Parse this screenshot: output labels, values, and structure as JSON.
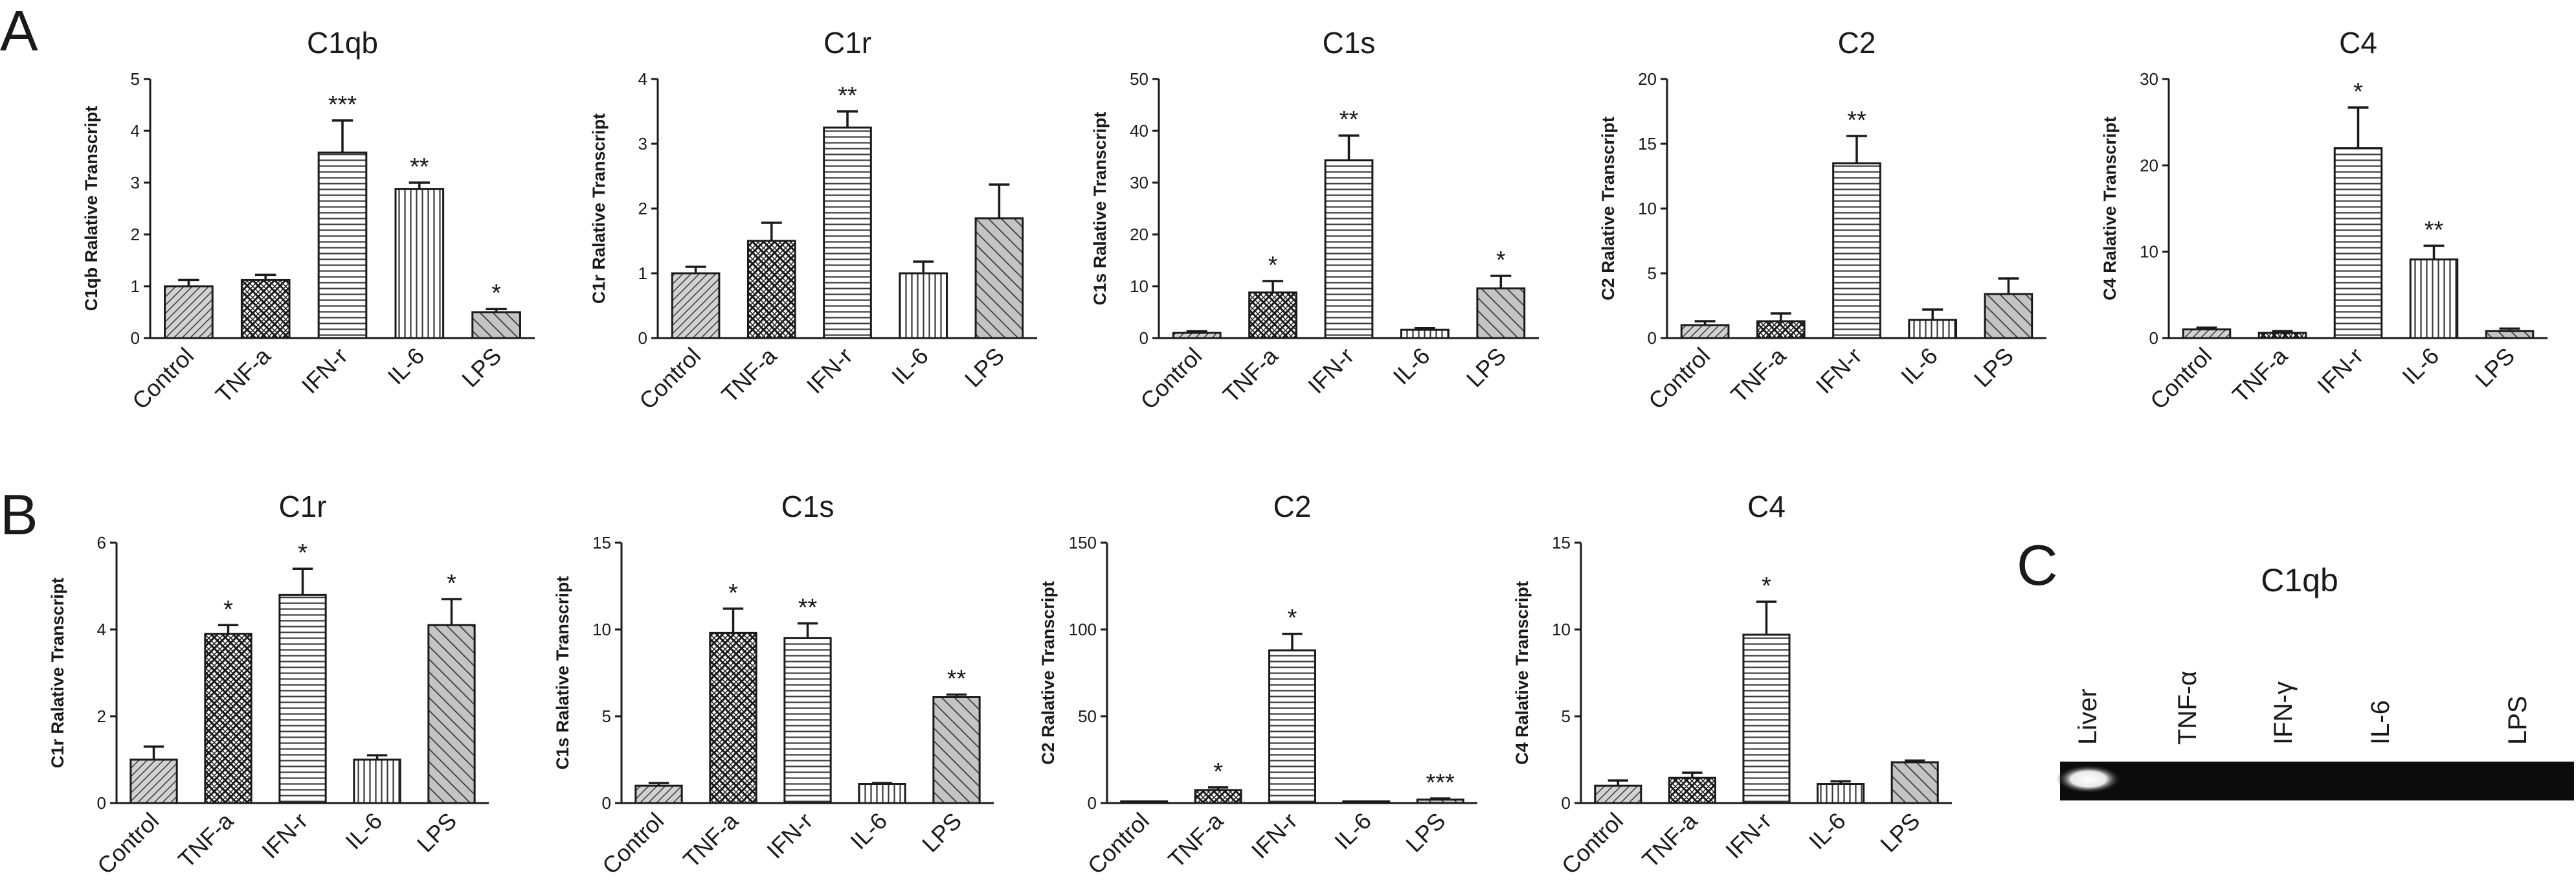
{
  "panel_letters": {
    "a": "A",
    "b": "B",
    "c": "C"
  },
  "colors": {
    "bar_fill": "#bdbdbd",
    "stroke": "#1a1a1a",
    "gel_background": "#0c0c0c",
    "gel_band": "#f4f4f4"
  },
  "patterns": [
    "diagonal-dense",
    "crosshatch",
    "horizontal",
    "vertical",
    "diagonal-wide"
  ],
  "chart_data": [
    {
      "panel": "A",
      "type": "bar",
      "title": "C1qb",
      "ylabel": "C1qb Ralative Transcript",
      "categories": [
        "Control",
        "TNF-a",
        "IFN-r",
        "IL-6",
        "LPS"
      ],
      "values": [
        1.0,
        1.12,
        3.58,
        2.88,
        0.5
      ],
      "errors": [
        0.12,
        0.1,
        0.62,
        0.12,
        0.06
      ],
      "significance": [
        "",
        "",
        "***",
        "**",
        "*"
      ],
      "ylim": [
        0,
        5
      ],
      "yticks": [
        0,
        1,
        2,
        3,
        4,
        5
      ]
    },
    {
      "panel": "A",
      "type": "bar",
      "title": "C1r",
      "ylabel": "C1r Ralative Transcript",
      "categories": [
        "Control",
        "TNF-a",
        "IFN-r",
        "IL-6",
        "LPS"
      ],
      "values": [
        1.0,
        1.5,
        3.25,
        1.0,
        1.85
      ],
      "errors": [
        0.1,
        0.28,
        0.25,
        0.18,
        0.52
      ],
      "significance": [
        "",
        "",
        "**",
        "",
        ""
      ],
      "ylim": [
        0,
        4
      ],
      "yticks": [
        0,
        1,
        2,
        3,
        4
      ]
    },
    {
      "panel": "A",
      "type": "bar",
      "title": "C1s",
      "ylabel": "C1s Ralative Transcript",
      "categories": [
        "Control",
        "TNF-a",
        "IFN-r",
        "IL-6",
        "LPS"
      ],
      "values": [
        1.0,
        8.8,
        34.3,
        1.6,
        9.6
      ],
      "errors": [
        0.3,
        2.2,
        4.8,
        0.3,
        2.4
      ],
      "significance": [
        "",
        "*",
        "**",
        "",
        "*"
      ],
      "ylim": [
        0,
        50
      ],
      "yticks": [
        0,
        10,
        20,
        30,
        40,
        50
      ]
    },
    {
      "panel": "A",
      "type": "bar",
      "title": "C2",
      "ylabel": "C2 Ralative Transcript",
      "categories": [
        "Control",
        "TNF-a",
        "IFN-r",
        "IL-6",
        "LPS"
      ],
      "values": [
        1.0,
        1.3,
        13.5,
        1.4,
        3.4
      ],
      "errors": [
        0.3,
        0.6,
        2.1,
        0.8,
        1.2
      ],
      "significance": [
        "",
        "",
        "**",
        "",
        ""
      ],
      "ylim": [
        0,
        20
      ],
      "yticks": [
        0,
        5,
        10,
        15,
        20
      ]
    },
    {
      "panel": "A",
      "type": "bar",
      "title": "C4",
      "ylabel": "C4 Ralative Transcript",
      "categories": [
        "Control",
        "TNF-a",
        "IFN-r",
        "IL-6",
        "LPS"
      ],
      "values": [
        1.0,
        0.6,
        22.0,
        9.1,
        0.8
      ],
      "errors": [
        0.2,
        0.2,
        4.7,
        1.6,
        0.3
      ],
      "significance": [
        "",
        "",
        "*",
        "**",
        ""
      ],
      "ylim": [
        0,
        30
      ],
      "yticks": [
        0,
        10,
        20,
        30
      ]
    },
    {
      "panel": "B",
      "type": "bar",
      "title": "C1r",
      "ylabel": "C1r Ralative Transcript",
      "categories": [
        "Control",
        "TNF-a",
        "IFN-r",
        "IL-6",
        "LPS"
      ],
      "values": [
        1.0,
        3.9,
        4.8,
        1.0,
        4.1
      ],
      "errors": [
        0.3,
        0.2,
        0.6,
        0.1,
        0.6
      ],
      "significance": [
        "",
        "*",
        "*",
        "",
        "*"
      ],
      "ylim": [
        0,
        6
      ],
      "yticks": [
        0,
        2,
        4,
        6
      ]
    },
    {
      "panel": "B",
      "type": "bar",
      "title": "C1s",
      "ylabel": "C1s Ralative Transcript",
      "categories": [
        "Control",
        "TNF-a",
        "IFN-r",
        "IL-6",
        "LPS"
      ],
      "values": [
        1.0,
        9.8,
        9.5,
        1.1,
        6.1
      ],
      "errors": [
        0.15,
        1.4,
        0.85,
        0.05,
        0.15
      ],
      "significance": [
        "",
        "*",
        "**",
        "",
        "**"
      ],
      "ylim": [
        0,
        15
      ],
      "yticks": [
        0,
        5,
        10,
        15
      ]
    },
    {
      "panel": "B",
      "type": "bar",
      "title": "C2",
      "ylabel": "C2 Ralative Transcript",
      "categories": [
        "Control",
        "TNF-a",
        "IFN-r",
        "IL-6",
        "LPS"
      ],
      "values": [
        1.0,
        7.5,
        88.0,
        1.0,
        2.0
      ],
      "errors": [
        0.3,
        1.5,
        9.5,
        0.3,
        0.6
      ],
      "significance": [
        "",
        "*",
        "*",
        "",
        "***"
      ],
      "ylim": [
        0,
        150
      ],
      "yticks": [
        0,
        50,
        100,
        150
      ]
    },
    {
      "panel": "B",
      "type": "bar",
      "title": "C4",
      "ylabel": "C4 Ralative Transcript",
      "categories": [
        "Control",
        "TNF-a",
        "IFN-r",
        "IL-6",
        "LPS"
      ],
      "values": [
        1.0,
        1.45,
        9.7,
        1.1,
        2.35
      ],
      "errors": [
        0.3,
        0.3,
        1.9,
        0.15,
        0.1
      ],
      "significance": [
        "",
        "",
        "*",
        "",
        ""
      ],
      "ylim": [
        0,
        15
      ],
      "yticks": [
        0,
        5,
        10,
        15
      ]
    }
  ],
  "gel": {
    "panel": "C",
    "title": "C1qb",
    "lanes": [
      "Liver",
      "TNF-α",
      "IFN-γ",
      "IL-6",
      "LPS"
    ],
    "bands": [
      1,
      0,
      0,
      0,
      0
    ]
  }
}
